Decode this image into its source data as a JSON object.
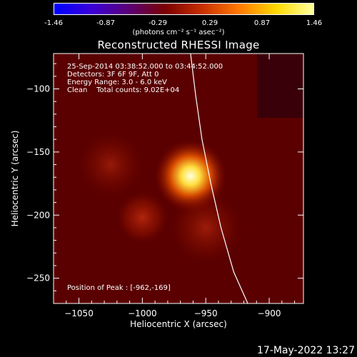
{
  "colorbar": {
    "ticks": [
      "-1.46",
      "-0.87",
      "-0.29",
      "0.29",
      "0.87",
      "1.46"
    ],
    "unit_label": "(photons cm⁻² s⁻¹ asec⁻²)",
    "colors": [
      "#0000ff",
      "#3b00d6",
      "#5a0078",
      "#7a0000",
      "#c83000",
      "#ff7a00",
      "#ffd800",
      "#ffffa0"
    ]
  },
  "chart_data": {
    "type": "heatmap",
    "title": "Reconstructed RHESSI Image",
    "xlabel": "Heliocentric X (arcsec)",
    "ylabel": "Heliocentric Y (arcsec)",
    "xlim": [
      -1070,
      -873
    ],
    "ylim": [
      -270,
      -72
    ],
    "x_ticks": [
      -1050,
      -1000,
      -950,
      -900
    ],
    "y_ticks": [
      -250,
      -200,
      -150,
      -100
    ],
    "sources": [
      {
        "x": -962,
        "y": -169,
        "intensity": 1.0,
        "size": 9
      },
      {
        "x": -1000,
        "y": -202,
        "intensity": 0.45,
        "size": 10
      },
      {
        "x": -950,
        "y": -210,
        "intensity": 0.25,
        "size": 14
      },
      {
        "x": -1025,
        "y": -160,
        "intensity": 0.2,
        "size": 13
      }
    ],
    "limb_curve": [
      [
        -962,
        -72
      ],
      [
        -958,
        -105
      ],
      [
        -953,
        -140
      ],
      [
        -946,
        -175
      ],
      [
        -938,
        -210
      ],
      [
        -928,
        -245
      ],
      [
        -916,
        -272
      ]
    ],
    "peak_marker": {
      "x": -962,
      "y": -169
    }
  },
  "annotations": {
    "time_range": "25-Sep-2014 03:38:52.000 to 03:44:52.000",
    "detectors": "Detectors: 3F 6F 9F, Att 0",
    "energy": "Energy Range: 3.0 - 6.0 keV",
    "clean": "Clean    Total counts: 9.02E+04",
    "peak": "Position of Peak : [-962,-169]"
  },
  "footer": {
    "date": "17-May-2022 13:27"
  }
}
